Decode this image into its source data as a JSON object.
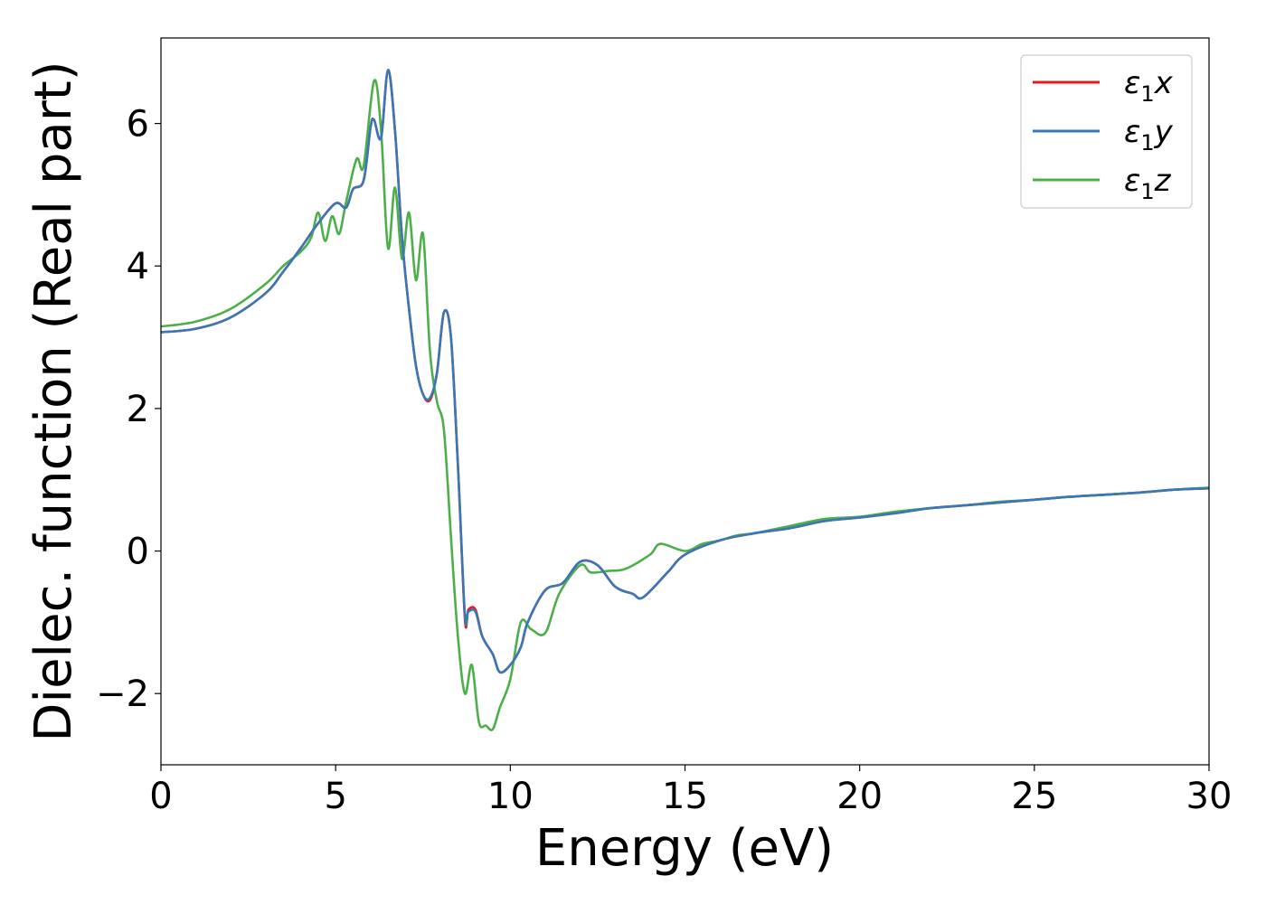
{
  "chart_data": {
    "type": "line",
    "title": "",
    "xlabel": "Energy (eV)",
    "ylabel": "Dielec. function (Real part)",
    "xlim": [
      0,
      30
    ],
    "ylim": [
      -3.0,
      7.2
    ],
    "xticks": [
      0,
      5,
      10,
      15,
      20,
      25,
      30
    ],
    "xtick_labels": [
      "0",
      "5",
      "10",
      "15",
      "20",
      "25",
      "30"
    ],
    "yticks": [
      -2,
      0,
      2,
      4,
      6
    ],
    "ytick_labels": [
      "−2",
      "0",
      "2",
      "4",
      "6"
    ],
    "grid": false,
    "legend_position": "top-right",
    "series": [
      {
        "name": "ε₁x",
        "legend_base": "ε",
        "legend_sub": "1",
        "legend_var": "x",
        "color": "#e41a1c",
        "x": [
          0,
          1,
          2,
          3,
          3.5,
          4,
          4.5,
          5,
          5.3,
          5.5,
          5.8,
          6.0,
          6.1,
          6.3,
          6.5,
          6.7,
          6.9,
          7.1,
          7.3,
          7.5,
          7.7,
          7.9,
          8.1,
          8.3,
          8.5,
          8.7,
          8.8,
          9.0,
          9.2,
          9.5,
          9.7,
          10.0,
          10.3,
          10.5,
          11.0,
          11.5,
          12.0,
          12.5,
          13.0,
          13.5,
          13.8,
          14.5,
          15.0,
          16.0,
          17.0,
          18.0,
          19.0,
          20.0,
          21.0,
          22.0,
          23.0,
          24.0,
          25.0,
          26.0,
          27.0,
          28.0,
          29.0,
          30.0
        ],
        "y": [
          3.07,
          3.12,
          3.28,
          3.62,
          3.92,
          4.25,
          4.6,
          4.88,
          4.82,
          5.08,
          5.2,
          5.95,
          6.05,
          5.8,
          6.75,
          5.9,
          4.4,
          3.4,
          2.6,
          2.2,
          2.12,
          2.5,
          3.35,
          3.0,
          1.2,
          -0.95,
          -0.82,
          -0.82,
          -1.2,
          -1.45,
          -1.7,
          -1.6,
          -1.35,
          -1.0,
          -0.55,
          -0.45,
          -0.15,
          -0.2,
          -0.5,
          -0.6,
          -0.65,
          -0.3,
          -0.05,
          0.15,
          0.25,
          0.32,
          0.42,
          0.47,
          0.53,
          0.6,
          0.64,
          0.68,
          0.72,
          0.76,
          0.79,
          0.82,
          0.86,
          0.88
        ]
      },
      {
        "name": "ε₁y",
        "legend_base": "ε",
        "legend_sub": "1",
        "legend_var": "y",
        "color": "#3a77b6",
        "x": [
          0,
          1,
          2,
          3,
          3.5,
          4,
          4.5,
          5,
          5.3,
          5.5,
          5.8,
          6.0,
          6.1,
          6.3,
          6.5,
          6.7,
          6.9,
          7.1,
          7.3,
          7.5,
          7.7,
          7.9,
          8.1,
          8.3,
          8.5,
          8.7,
          8.8,
          9.0,
          9.2,
          9.5,
          9.7,
          10.0,
          10.3,
          10.5,
          11.0,
          11.5,
          12.0,
          12.5,
          13.0,
          13.5,
          13.8,
          14.5,
          15.0,
          16.0,
          17.0,
          18.0,
          19.0,
          20.0,
          21.0,
          22.0,
          23.0,
          24.0,
          25.0,
          26.0,
          27.0,
          28.0,
          29.0,
          30.0
        ],
        "y": [
          3.07,
          3.12,
          3.28,
          3.62,
          3.92,
          4.25,
          4.6,
          4.88,
          4.82,
          5.08,
          5.2,
          5.95,
          6.05,
          5.8,
          6.75,
          5.9,
          4.4,
          3.4,
          2.6,
          2.2,
          2.15,
          2.5,
          3.35,
          3.0,
          1.2,
          -0.9,
          -0.85,
          -0.85,
          -1.2,
          -1.45,
          -1.7,
          -1.6,
          -1.35,
          -1.0,
          -0.55,
          -0.45,
          -0.15,
          -0.2,
          -0.5,
          -0.6,
          -0.65,
          -0.3,
          -0.05,
          0.15,
          0.25,
          0.32,
          0.42,
          0.47,
          0.53,
          0.6,
          0.64,
          0.68,
          0.72,
          0.76,
          0.79,
          0.82,
          0.86,
          0.88
        ]
      },
      {
        "name": "ε₁z",
        "legend_base": "ε",
        "legend_sub": "1",
        "legend_var": "z",
        "color": "#4daf4a",
        "x": [
          0,
          1,
          2,
          3,
          3.5,
          4,
          4.3,
          4.5,
          4.7,
          4.9,
          5.1,
          5.3,
          5.6,
          5.8,
          6.1,
          6.3,
          6.5,
          6.7,
          6.9,
          7.1,
          7.3,
          7.5,
          7.7,
          7.9,
          8.1,
          8.3,
          8.5,
          8.7,
          8.9,
          9.1,
          9.3,
          9.5,
          9.7,
          10.0,
          10.3,
          10.6,
          11.0,
          11.4,
          12.0,
          12.3,
          12.8,
          13.3,
          14.0,
          14.3,
          15.0,
          15.5,
          16.0,
          16.5,
          17.0,
          18.0,
          19.0,
          20.0,
          21.0,
          22.0,
          23.0,
          24.0,
          25.0,
          26.0,
          27.0,
          28.0,
          29.0,
          30.0
        ],
        "y": [
          3.15,
          3.22,
          3.4,
          3.75,
          4.0,
          4.2,
          4.4,
          4.75,
          4.35,
          4.7,
          4.45,
          4.9,
          5.5,
          5.4,
          6.6,
          5.9,
          4.25,
          5.1,
          4.1,
          4.75,
          3.8,
          4.45,
          2.8,
          2.1,
          1.7,
          0.2,
          -1.2,
          -2.0,
          -1.6,
          -2.4,
          -2.45,
          -2.5,
          -2.2,
          -1.8,
          -1.0,
          -1.1,
          -1.15,
          -0.6,
          -0.2,
          -0.3,
          -0.28,
          -0.25,
          -0.05,
          0.1,
          0.0,
          0.1,
          0.15,
          0.22,
          0.25,
          0.35,
          0.45,
          0.48,
          0.55,
          0.6,
          0.64,
          0.69,
          0.72,
          0.76,
          0.79,
          0.82,
          0.86,
          0.89
        ]
      }
    ]
  }
}
